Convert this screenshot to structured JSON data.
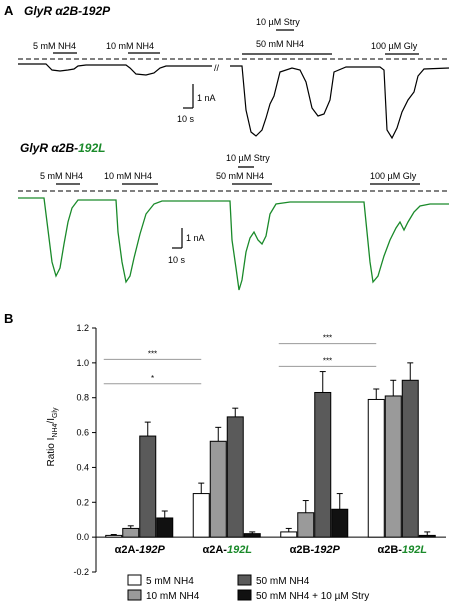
{
  "colors": {
    "black": "#000000",
    "green": "#1a8a2a",
    "dashed": "#000000"
  },
  "panel_a": {
    "label": "A",
    "trace1": {
      "title_prefix": "GlyR α2B-",
      "title_suffix": "192P",
      "apps": [
        "5 mM NH4",
        "10 mM NH4",
        "10 µM Stry",
        "50 mM NH4",
        "100 µM Gly"
      ],
      "break_mark": "//",
      "scale_y": "1 nA",
      "scale_x": "10 s"
    },
    "trace2": {
      "title_prefix": "GlyR α2B-",
      "title_suffix": "192L",
      "apps": [
        "5 mM NH4",
        "10 mM NH4",
        "10 µM Stry",
        "50 mM NH4",
        "100 µM Gly"
      ],
      "scale_y": "1 nA",
      "scale_x": "10 s"
    }
  },
  "panel_b": {
    "label": "B",
    "group_labels": [
      {
        "prefix": "α2A-",
        "suffix": "192P",
        "suffix_green": false
      },
      {
        "prefix": "α2A-",
        "suffix": "192L",
        "suffix_green": true
      },
      {
        "prefix": "α2B-",
        "suffix": "192P",
        "suffix_green": false
      },
      {
        "prefix": "α2B-",
        "suffix": "192L",
        "suffix_green": true
      }
    ],
    "ylabel_main": "Ratio I",
    "ylabel_sub1": "NH4",
    "ylabel_mid": "/I",
    "ylabel_sub2": "Gly",
    "significance": [
      {
        "label": "*",
        "from_group": 0,
        "to_group": 1
      },
      {
        "label": "***",
        "from_group": 0,
        "to_group": 1
      },
      {
        "label": "***",
        "from_group": 2,
        "to_group": 3
      },
      {
        "label": "***",
        "from_group": 2,
        "to_group": 3
      }
    ],
    "legend": [
      "5 mM NH4",
      "10 mM NH4",
      "50 mM NH4",
      "50 mM NH4 + 10 µM Stry"
    ]
  },
  "chart_data": {
    "type": "bar",
    "categories": [
      "α2A-192P",
      "α2A-192L",
      "α2B-192P",
      "α2B-192L"
    ],
    "ylabel": "Ratio I NH4 / I Gly",
    "ylim": [
      -0.2,
      1.2
    ],
    "yticks": [
      "-0.2",
      "0.0",
      "0.2",
      "0.4",
      "0.6",
      "0.8",
      "1.0",
      "1.2"
    ],
    "series": [
      {
        "name": "5 mM NH4",
        "color": "#ffffff",
        "values": [
          0.01,
          0.25,
          0.03,
          0.79
        ],
        "errors": [
          0.005,
          0.06,
          0.02,
          0.06
        ]
      },
      {
        "name": "10 mM NH4",
        "color": "#9a9a9a",
        "values": [
          0.05,
          0.55,
          0.14,
          0.81
        ],
        "errors": [
          0.015,
          0.08,
          0.07,
          0.09
        ]
      },
      {
        "name": "50 mM NH4",
        "color": "#5a5a5a",
        "values": [
          0.58,
          0.69,
          0.83,
          0.9
        ],
        "errors": [
          0.08,
          0.05,
          0.12,
          0.1
        ]
      },
      {
        "name": "50 mM NH4 + 10 µM Stry",
        "color": "#111111",
        "values": [
          0.11,
          0.02,
          0.16,
          0.01
        ],
        "errors": [
          0.04,
          0.01,
          0.09,
          0.02
        ]
      }
    ]
  }
}
